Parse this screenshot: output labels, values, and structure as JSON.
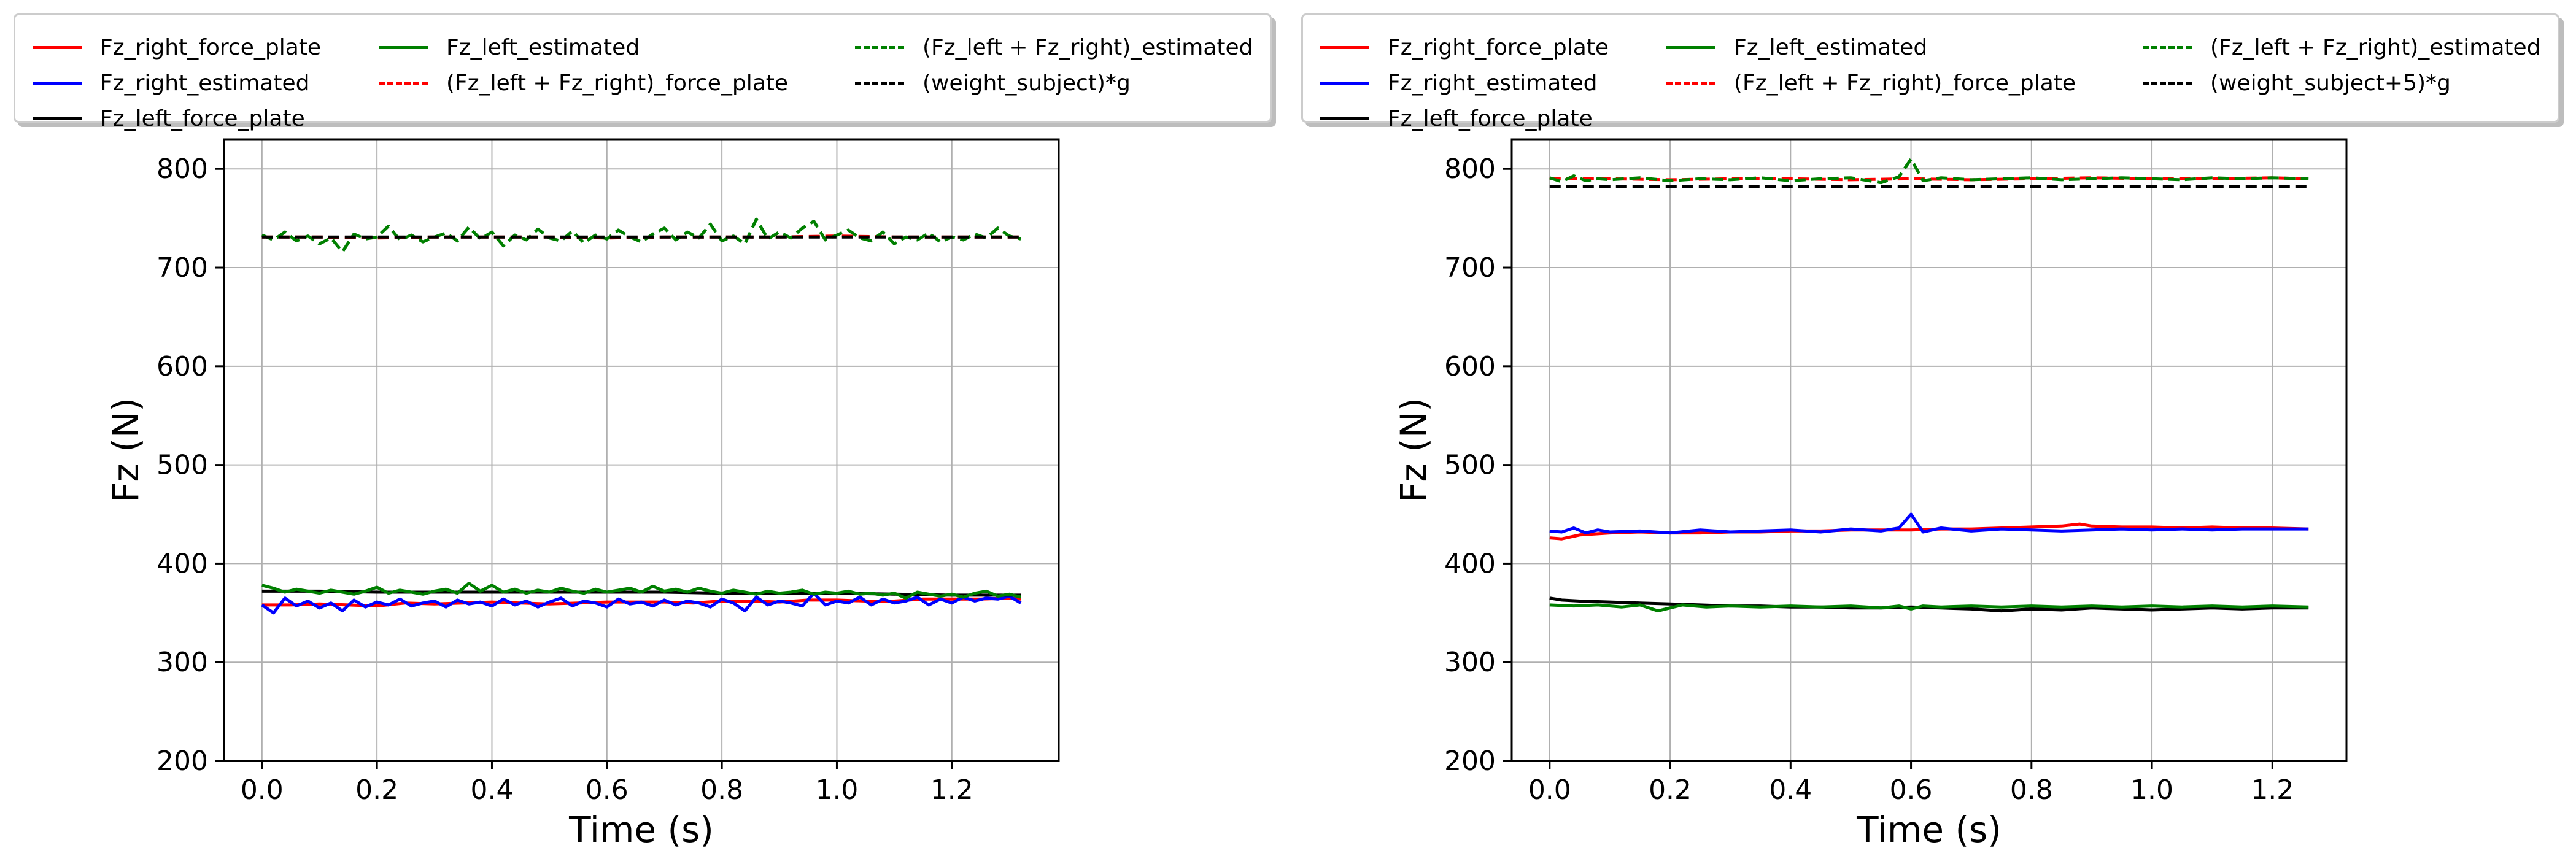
{
  "chart_data": [
    {
      "type": "line",
      "title": "",
      "xlabel": "Time (s)",
      "ylabel": "Fz (N)",
      "xlim": [
        -0.066,
        1.386
      ],
      "ylim": [
        200,
        830
      ],
      "xticks": [
        0.0,
        0.2,
        0.4,
        0.6,
        0.8,
        1.0,
        1.2
      ],
      "xtick_labels": [
        "0.0",
        "0.2",
        "0.4",
        "0.6",
        "0.8",
        "1.0",
        "1.2"
      ],
      "yticks": [
        200,
        300,
        400,
        500,
        600,
        700,
        800
      ],
      "ytick_labels": [
        "200",
        "300",
        "400",
        "500",
        "600",
        "700",
        "800"
      ],
      "grid": true,
      "legend_position": "top (above plot, 3 columns)",
      "series": [
        {
          "name": "Fz_right_force_plate",
          "color": "#ff0000",
          "dash": "solid",
          "x": [
            0.0,
            0.05,
            0.1,
            0.15,
            0.2,
            0.25,
            0.3,
            0.35,
            0.4,
            0.45,
            0.5,
            0.55,
            0.6,
            0.65,
            0.7,
            0.75,
            0.8,
            0.85,
            0.9,
            0.95,
            1.0,
            1.05,
            1.1,
            1.15,
            1.2,
            1.25,
            1.3,
            1.32
          ],
          "y": [
            358,
            358,
            359,
            358,
            357,
            360,
            359,
            360,
            361,
            360,
            359,
            360,
            361,
            361,
            361,
            360,
            362,
            362,
            361,
            363,
            363,
            362,
            362,
            364,
            364,
            364,
            365,
            364
          ]
        },
        {
          "name": "Fz_right_estimated",
          "color": "#0000ff",
          "dash": "solid",
          "x": [
            0.0,
            0.02,
            0.04,
            0.06,
            0.08,
            0.1,
            0.12,
            0.14,
            0.16,
            0.18,
            0.2,
            0.22,
            0.24,
            0.26,
            0.28,
            0.3,
            0.32,
            0.34,
            0.36,
            0.38,
            0.4,
            0.42,
            0.44,
            0.46,
            0.48,
            0.5,
            0.52,
            0.54,
            0.56,
            0.58,
            0.6,
            0.62,
            0.64,
            0.66,
            0.68,
            0.7,
            0.72,
            0.74,
            0.76,
            0.78,
            0.8,
            0.82,
            0.84,
            0.86,
            0.88,
            0.9,
            0.92,
            0.94,
            0.96,
            0.98,
            1.0,
            1.02,
            1.04,
            1.06,
            1.08,
            1.1,
            1.12,
            1.14,
            1.16,
            1.18,
            1.2,
            1.22,
            1.24,
            1.26,
            1.28,
            1.3,
            1.32
          ],
          "y": [
            358,
            350,
            365,
            357,
            362,
            355,
            360,
            352,
            363,
            356,
            361,
            358,
            364,
            357,
            360,
            362,
            356,
            363,
            359,
            361,
            357,
            364,
            358,
            362,
            356,
            361,
            365,
            357,
            362,
            360,
            356,
            364,
            359,
            361,
            357,
            363,
            358,
            362,
            360,
            356,
            364,
            360,
            352,
            366,
            358,
            362,
            360,
            357,
            370,
            358,
            362,
            360,
            366,
            358,
            364,
            360,
            362,
            366,
            358,
            364,
            360,
            366,
            362,
            365,
            364,
            367,
            360
          ]
        },
        {
          "name": "Fz_left_force_plate",
          "color": "#000000",
          "dash": "solid",
          "x": [
            0.0,
            0.1,
            0.2,
            0.3,
            0.4,
            0.5,
            0.6,
            0.7,
            0.8,
            0.9,
            1.0,
            1.1,
            1.2,
            1.32
          ],
          "y": [
            372,
            372,
            371,
            371,
            371,
            371,
            371,
            371,
            370,
            370,
            370,
            369,
            368,
            368
          ]
        },
        {
          "name": "Fz_left_estimated",
          "color": "#008000",
          "dash": "solid",
          "x": [
            0.0,
            0.02,
            0.04,
            0.06,
            0.08,
            0.1,
            0.12,
            0.14,
            0.16,
            0.18,
            0.2,
            0.22,
            0.24,
            0.26,
            0.28,
            0.3,
            0.32,
            0.34,
            0.36,
            0.38,
            0.4,
            0.42,
            0.44,
            0.46,
            0.48,
            0.5,
            0.52,
            0.54,
            0.56,
            0.58,
            0.6,
            0.62,
            0.64,
            0.66,
            0.68,
            0.7,
            0.72,
            0.74,
            0.76,
            0.78,
            0.8,
            0.82,
            0.84,
            0.86,
            0.88,
            0.9,
            0.92,
            0.94,
            0.96,
            0.98,
            1.0,
            1.02,
            1.04,
            1.06,
            1.08,
            1.1,
            1.12,
            1.14,
            1.16,
            1.18,
            1.2,
            1.22,
            1.24,
            1.26,
            1.28,
            1.3,
            1.32
          ],
          "y": [
            378,
            375,
            371,
            374,
            372,
            370,
            373,
            371,
            369,
            372,
            376,
            370,
            373,
            371,
            369,
            372,
            374,
            370,
            380,
            372,
            378,
            371,
            374,
            370,
            373,
            371,
            375,
            372,
            370,
            374,
            371,
            373,
            375,
            371,
            377,
            372,
            374,
            371,
            375,
            372,
            370,
            373,
            371,
            369,
            372,
            370,
            371,
            373,
            369,
            371,
            370,
            372,
            369,
            370,
            368,
            370,
            365,
            371,
            369,
            367,
            369,
            366,
            370,
            372,
            367,
            369,
            366
          ]
        },
        {
          "name": "(Fz_left + Fz_right)_force_plate",
          "color": "#ff0000",
          "dash": "dashed",
          "x": [
            0.0,
            0.1,
            0.2,
            0.3,
            0.4,
            0.5,
            0.6,
            0.7,
            0.8,
            0.9,
            1.0,
            1.1,
            1.2,
            1.32
          ],
          "y": [
            731,
            731,
            730,
            731,
            731,
            731,
            730,
            731,
            731,
            731,
            732,
            731,
            731,
            731
          ]
        },
        {
          "name": "(Fz_left + Fz_right)_estimated",
          "color": "#008000",
          "dash": "dashed",
          "x": [
            0.0,
            0.02,
            0.04,
            0.06,
            0.08,
            0.1,
            0.12,
            0.14,
            0.16,
            0.18,
            0.2,
            0.22,
            0.24,
            0.26,
            0.28,
            0.3,
            0.32,
            0.34,
            0.36,
            0.38,
            0.4,
            0.42,
            0.44,
            0.46,
            0.48,
            0.5,
            0.52,
            0.54,
            0.56,
            0.58,
            0.6,
            0.62,
            0.64,
            0.66,
            0.68,
            0.7,
            0.72,
            0.74,
            0.76,
            0.78,
            0.8,
            0.82,
            0.84,
            0.86,
            0.88,
            0.9,
            0.92,
            0.94,
            0.96,
            0.98,
            1.0,
            1.02,
            1.04,
            1.06,
            1.08,
            1.1,
            1.12,
            1.14,
            1.16,
            1.18,
            1.2,
            1.22,
            1.24,
            1.26,
            1.28,
            1.3,
            1.32
          ],
          "y": [
            733,
            728,
            736,
            727,
            732,
            724,
            730,
            716,
            734,
            729,
            731,
            742,
            728,
            733,
            726,
            731,
            735,
            727,
            741,
            729,
            736,
            722,
            733,
            728,
            739,
            730,
            727,
            737,
            725,
            733,
            729,
            738,
            731,
            726,
            734,
            740,
            728,
            736,
            730,
            744,
            727,
            732,
            724,
            749,
            729,
            736,
            730,
            740,
            747,
            728,
            733,
            738,
            730,
            727,
            736,
            724,
            731,
            728,
            735,
            726,
            731,
            728,
            734,
            730,
            740,
            732,
            729
          ]
        },
        {
          "name": "(weight_subject)*g",
          "color": "#000000",
          "dash": "dashed",
          "x": [
            0.0,
            1.32
          ],
          "y": [
            731,
            731
          ]
        }
      ]
    },
    {
      "type": "line",
      "title": "",
      "xlabel": "Time (s)",
      "ylabel": "Fz (N)",
      "xlim": [
        -0.063,
        1.323
      ],
      "ylim": [
        200,
        830
      ],
      "xticks": [
        0.0,
        0.2,
        0.4,
        0.6,
        0.8,
        1.0,
        1.2
      ],
      "xtick_labels": [
        "0.0",
        "0.2",
        "0.4",
        "0.6",
        "0.8",
        "1.0",
        "1.2"
      ],
      "yticks": [
        200,
        300,
        400,
        500,
        600,
        700,
        800
      ],
      "ytick_labels": [
        "200",
        "300",
        "400",
        "500",
        "600",
        "700",
        "800"
      ],
      "grid": true,
      "legend_position": "top (above plot, 3 columns)",
      "series": [
        {
          "name": "Fz_right_force_plate",
          "color": "#ff0000",
          "dash": "solid",
          "x": [
            0.0,
            0.02,
            0.05,
            0.1,
            0.15,
            0.2,
            0.25,
            0.3,
            0.35,
            0.4,
            0.45,
            0.5,
            0.55,
            0.6,
            0.65,
            0.7,
            0.75,
            0.8,
            0.85,
            0.88,
            0.9,
            0.95,
            1.0,
            1.05,
            1.1,
            1.15,
            1.2,
            1.26
          ],
          "y": [
            426,
            425,
            429,
            431,
            432,
            431,
            431,
            432,
            432,
            433,
            433,
            434,
            434,
            434,
            435,
            435,
            436,
            437,
            438,
            440,
            438,
            437,
            437,
            436,
            437,
            436,
            436,
            435
          ]
        },
        {
          "name": "Fz_right_estimated",
          "color": "#0000ff",
          "dash": "solid",
          "x": [
            0.0,
            0.02,
            0.04,
            0.06,
            0.08,
            0.1,
            0.15,
            0.2,
            0.25,
            0.3,
            0.35,
            0.4,
            0.45,
            0.5,
            0.55,
            0.58,
            0.6,
            0.62,
            0.65,
            0.7,
            0.75,
            0.8,
            0.85,
            0.9,
            0.95,
            1.0,
            1.05,
            1.1,
            1.15,
            1.2,
            1.26
          ],
          "y": [
            433,
            432,
            436,
            431,
            434,
            432,
            433,
            431,
            434,
            432,
            433,
            434,
            432,
            435,
            433,
            436,
            450,
            432,
            436,
            433,
            435,
            434,
            433,
            434,
            435,
            434,
            435,
            434,
            435,
            435,
            435
          ]
        },
        {
          "name": "Fz_left_force_plate",
          "color": "#000000",
          "dash": "solid",
          "x": [
            0.0,
            0.02,
            0.05,
            0.1,
            0.15,
            0.2,
            0.25,
            0.3,
            0.35,
            0.4,
            0.45,
            0.5,
            0.55,
            0.6,
            0.65,
            0.7,
            0.75,
            0.8,
            0.85,
            0.9,
            0.95,
            1.0,
            1.05,
            1.1,
            1.15,
            1.2,
            1.26
          ],
          "y": [
            365,
            363,
            362,
            361,
            360,
            359,
            358,
            357,
            357,
            356,
            356,
            355,
            355,
            356,
            355,
            354,
            352,
            354,
            353,
            355,
            354,
            353,
            354,
            355,
            354,
            355,
            355
          ]
        },
        {
          "name": "Fz_left_estimated",
          "color": "#008000",
          "dash": "solid",
          "x": [
            0.0,
            0.04,
            0.08,
            0.12,
            0.15,
            0.18,
            0.22,
            0.26,
            0.3,
            0.35,
            0.4,
            0.45,
            0.5,
            0.55,
            0.58,
            0.6,
            0.62,
            0.65,
            0.7,
            0.75,
            0.8,
            0.85,
            0.9,
            0.95,
            1.0,
            1.05,
            1.1,
            1.15,
            1.2,
            1.26
          ],
          "y": [
            358,
            357,
            358,
            356,
            358,
            352,
            358,
            356,
            357,
            356,
            357,
            356,
            357,
            355,
            357,
            354,
            357,
            356,
            357,
            356,
            357,
            356,
            357,
            356,
            357,
            356,
            357,
            356,
            357,
            356
          ]
        },
        {
          "name": "(Fz_left + Fz_right)_force_plate",
          "color": "#ff0000",
          "dash": "dashed",
          "x": [
            0.0,
            0.1,
            0.2,
            0.3,
            0.4,
            0.5,
            0.6,
            0.7,
            0.8,
            0.9,
            1.0,
            1.1,
            1.2,
            1.26
          ],
          "y": [
            790,
            790,
            789,
            790,
            790,
            789,
            790,
            789,
            790,
            791,
            790,
            790,
            791,
            790
          ]
        },
        {
          "name": "(Fz_left + Fz_right)_estimated",
          "color": "#008000",
          "dash": "dashed",
          "x": [
            0.0,
            0.02,
            0.04,
            0.06,
            0.08,
            0.1,
            0.15,
            0.2,
            0.25,
            0.3,
            0.35,
            0.4,
            0.45,
            0.5,
            0.55,
            0.58,
            0.6,
            0.62,
            0.65,
            0.7,
            0.75,
            0.8,
            0.85,
            0.9,
            0.95,
            1.0,
            1.05,
            1.1,
            1.15,
            1.2,
            1.26
          ],
          "y": [
            791,
            787,
            793,
            788,
            790,
            789,
            791,
            788,
            790,
            789,
            791,
            788,
            790,
            791,
            786,
            792,
            810,
            788,
            791,
            789,
            790,
            791,
            789,
            790,
            791,
            790,
            789,
            791,
            790,
            791,
            790
          ]
        },
        {
          "name": "(weight_subject+5)*g",
          "color": "#000000",
          "dash": "dashed",
          "x": [
            0.0,
            1.26
          ],
          "y": [
            782,
            782
          ]
        }
      ]
    }
  ]
}
